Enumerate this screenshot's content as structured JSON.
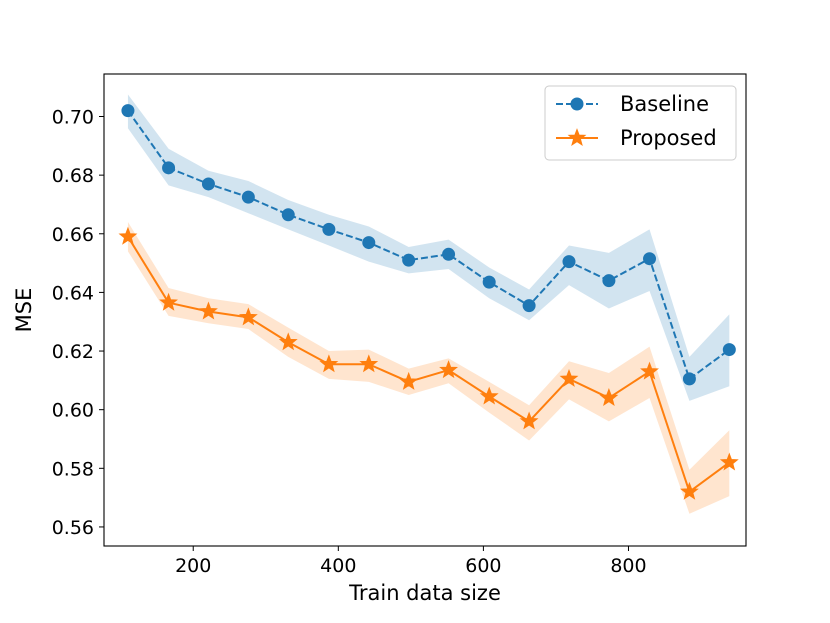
{
  "chart_data": {
    "type": "line",
    "title": "",
    "xlabel": "Train data size",
    "ylabel": "MSE",
    "xlim": [
      77,
      962
    ],
    "ylim": [
      0.5535,
      0.7145
    ],
    "xticks": [
      200,
      400,
      600,
      800
    ],
    "xtick_labels": [
      "200",
      "400",
      "600",
      "800"
    ],
    "yticks": [
      0.56,
      0.58,
      0.6,
      0.62,
      0.64,
      0.66,
      0.68,
      0.7
    ],
    "ytick_labels": [
      "0.56",
      "0.58",
      "0.60",
      "0.62",
      "0.64",
      "0.66",
      "0.68",
      "0.70"
    ],
    "grid": false,
    "legend_position": "upper-right",
    "x": [
      110,
      166,
      221,
      276,
      331,
      387,
      442,
      497,
      552,
      608,
      663,
      718,
      773,
      829,
      884,
      939
    ],
    "series": [
      {
        "name": "Baseline",
        "color": "#1f77b4",
        "line_style": "dashed",
        "marker": "circle",
        "values": [
          0.702,
          0.6825,
          0.677,
          0.6725,
          0.6665,
          0.6615,
          0.657,
          0.651,
          0.653,
          0.6435,
          0.6355,
          0.6505,
          0.644,
          0.6515,
          0.6105,
          0.6205
        ],
        "band_lower": [
          0.696,
          0.6765,
          0.6725,
          0.667,
          0.6615,
          0.656,
          0.6505,
          0.6465,
          0.648,
          0.638,
          0.6305,
          0.6425,
          0.6345,
          0.6405,
          0.603,
          0.608
        ],
        "band_upper": [
          0.7075,
          0.689,
          0.6815,
          0.678,
          0.6715,
          0.6665,
          0.6625,
          0.6555,
          0.658,
          0.6485,
          0.641,
          0.656,
          0.6535,
          0.6615,
          0.618,
          0.6325
        ]
      },
      {
        "name": "Proposed",
        "color": "#ff7f0e",
        "line_style": "solid",
        "marker": "star",
        "values": [
          0.659,
          0.6365,
          0.6335,
          0.6315,
          0.623,
          0.6155,
          0.6155,
          0.6095,
          0.6135,
          0.6045,
          0.596,
          0.6105,
          0.604,
          0.613,
          0.572,
          0.582
        ],
        "band_lower": [
          0.654,
          0.632,
          0.6295,
          0.6275,
          0.618,
          0.6105,
          0.6095,
          0.605,
          0.609,
          0.599,
          0.5895,
          0.6035,
          0.596,
          0.604,
          0.5645,
          0.5705
        ],
        "band_upper": [
          0.664,
          0.6415,
          0.638,
          0.636,
          0.628,
          0.62,
          0.6205,
          0.614,
          0.6175,
          0.6095,
          0.6015,
          0.6165,
          0.6125,
          0.6215,
          0.5795,
          0.593
        ]
      }
    ]
  }
}
